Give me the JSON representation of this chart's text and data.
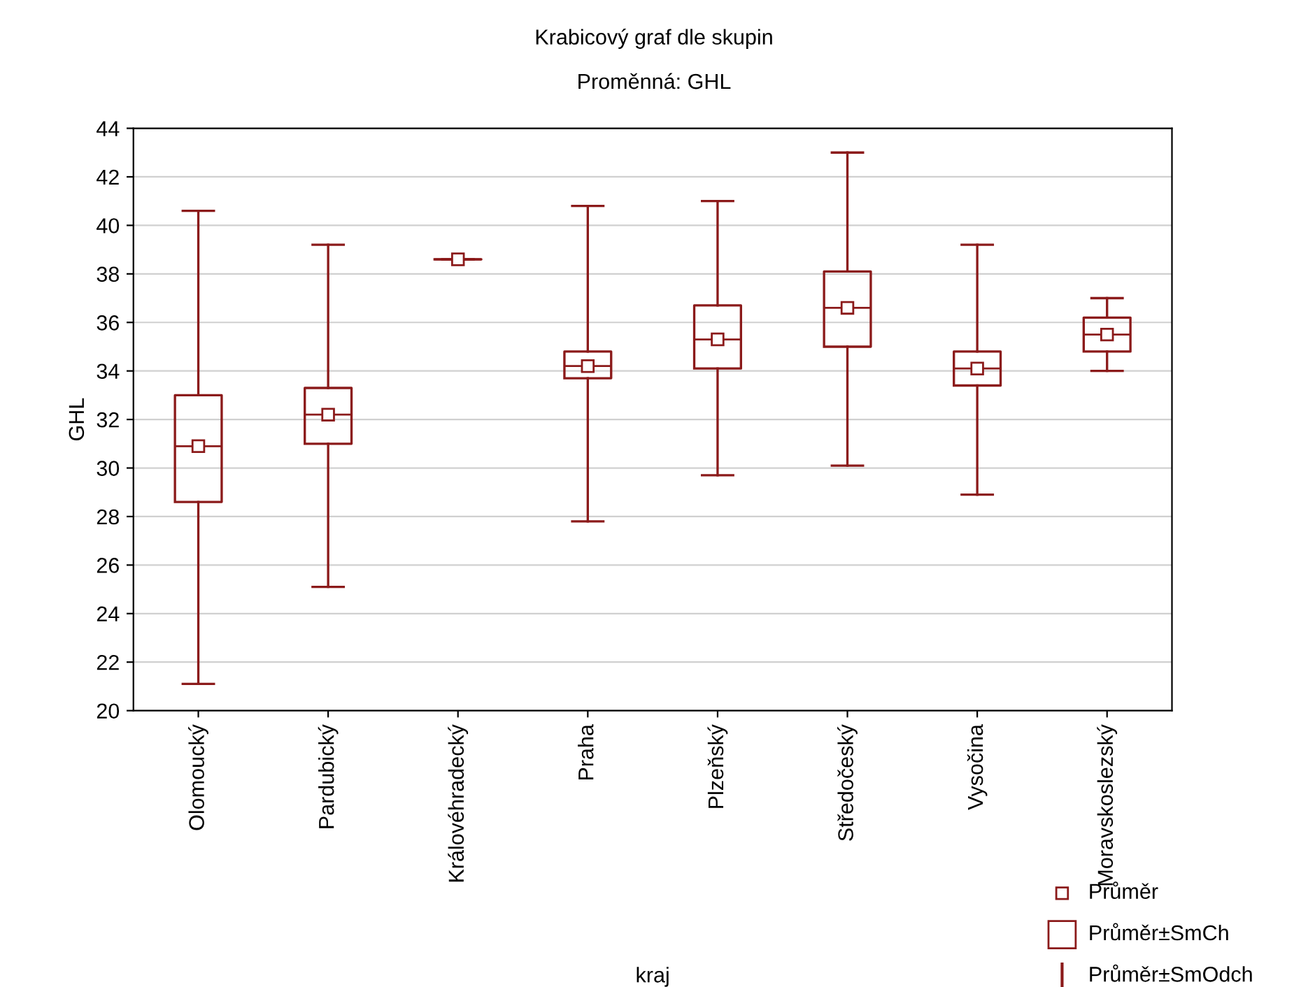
{
  "chart_data": {
    "type": "box",
    "title": "Krabicový graf dle skupin",
    "subtitle": "Proměnná: GHL",
    "xlabel": "kraj",
    "ylabel": "GHL",
    "categories": [
      "Olomoucký",
      "Pardubický",
      "Královéhradecký",
      "Praha",
      "Plzeňský",
      "Středočeský",
      "Vysočina",
      "Moravskoslezský"
    ],
    "color": "#8b1a1a",
    "boxes": [
      {
        "low": 21.1,
        "q1": 28.6,
        "median": 30.9,
        "q3": 33.0,
        "high": 40.6,
        "mean": 30.9
      },
      {
        "low": 25.1,
        "q1": 31.0,
        "median": 32.2,
        "q3": 33.3,
        "high": 39.2,
        "mean": 32.2
      },
      {
        "low": 38.6,
        "q1": 38.6,
        "median": 38.6,
        "q3": 38.6,
        "high": 38.6,
        "mean": 38.6
      },
      {
        "low": 27.8,
        "q1": 33.7,
        "median": 34.2,
        "q3": 34.8,
        "high": 40.8,
        "mean": 34.2
      },
      {
        "low": 29.7,
        "q1": 34.1,
        "median": 35.3,
        "q3": 36.7,
        "high": 41.0,
        "mean": 35.3
      },
      {
        "low": 30.1,
        "q1": 35.0,
        "median": 36.6,
        "q3": 38.1,
        "high": 43.0,
        "mean": 36.6
      },
      {
        "low": 28.9,
        "q1": 33.4,
        "median": 34.1,
        "q3": 34.8,
        "high": 39.2,
        "mean": 34.1
      },
      {
        "low": 34.0,
        "q1": 34.8,
        "median": 35.5,
        "q3": 36.2,
        "high": 37.0,
        "mean": 35.5
      }
    ],
    "annotations": [
      "Průměr",
      "Průměr±SmCh",
      "Průměr±SmOdch"
    ],
    "ylim": [
      20,
      44
    ],
    "yticks": [
      20,
      22,
      24,
      26,
      28,
      30,
      32,
      34,
      36,
      38,
      40,
      42,
      44
    ],
    "grid": "y"
  }
}
